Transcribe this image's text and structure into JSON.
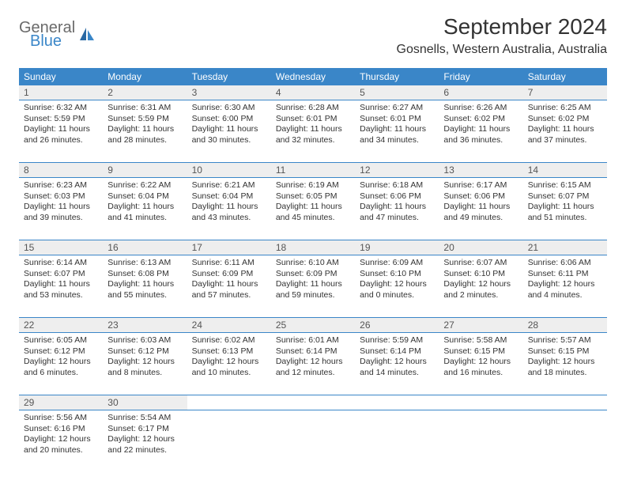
{
  "logo": {
    "general": "General",
    "blue": "Blue"
  },
  "title": "September 2024",
  "location": "Gosnells, Western Australia, Australia",
  "colors": {
    "header_bg": "#3a86c8",
    "header_text": "#ffffff",
    "daynum_bg": "#eeeeee",
    "text": "#333333",
    "border": "#3a86c8"
  },
  "day_names": [
    "Sunday",
    "Monday",
    "Tuesday",
    "Wednesday",
    "Thursday",
    "Friday",
    "Saturday"
  ],
  "weeks": [
    [
      {
        "num": "1",
        "sunrise": "Sunrise: 6:32 AM",
        "sunset": "Sunset: 5:59 PM",
        "daylight1": "Daylight: 11 hours",
        "daylight2": "and 26 minutes."
      },
      {
        "num": "2",
        "sunrise": "Sunrise: 6:31 AM",
        "sunset": "Sunset: 5:59 PM",
        "daylight1": "Daylight: 11 hours",
        "daylight2": "and 28 minutes."
      },
      {
        "num": "3",
        "sunrise": "Sunrise: 6:30 AM",
        "sunset": "Sunset: 6:00 PM",
        "daylight1": "Daylight: 11 hours",
        "daylight2": "and 30 minutes."
      },
      {
        "num": "4",
        "sunrise": "Sunrise: 6:28 AM",
        "sunset": "Sunset: 6:01 PM",
        "daylight1": "Daylight: 11 hours",
        "daylight2": "and 32 minutes."
      },
      {
        "num": "5",
        "sunrise": "Sunrise: 6:27 AM",
        "sunset": "Sunset: 6:01 PM",
        "daylight1": "Daylight: 11 hours",
        "daylight2": "and 34 minutes."
      },
      {
        "num": "6",
        "sunrise": "Sunrise: 6:26 AM",
        "sunset": "Sunset: 6:02 PM",
        "daylight1": "Daylight: 11 hours",
        "daylight2": "and 36 minutes."
      },
      {
        "num": "7",
        "sunrise": "Sunrise: 6:25 AM",
        "sunset": "Sunset: 6:02 PM",
        "daylight1": "Daylight: 11 hours",
        "daylight2": "and 37 minutes."
      }
    ],
    [
      {
        "num": "8",
        "sunrise": "Sunrise: 6:23 AM",
        "sunset": "Sunset: 6:03 PM",
        "daylight1": "Daylight: 11 hours",
        "daylight2": "and 39 minutes."
      },
      {
        "num": "9",
        "sunrise": "Sunrise: 6:22 AM",
        "sunset": "Sunset: 6:04 PM",
        "daylight1": "Daylight: 11 hours",
        "daylight2": "and 41 minutes."
      },
      {
        "num": "10",
        "sunrise": "Sunrise: 6:21 AM",
        "sunset": "Sunset: 6:04 PM",
        "daylight1": "Daylight: 11 hours",
        "daylight2": "and 43 minutes."
      },
      {
        "num": "11",
        "sunrise": "Sunrise: 6:19 AM",
        "sunset": "Sunset: 6:05 PM",
        "daylight1": "Daylight: 11 hours",
        "daylight2": "and 45 minutes."
      },
      {
        "num": "12",
        "sunrise": "Sunrise: 6:18 AM",
        "sunset": "Sunset: 6:06 PM",
        "daylight1": "Daylight: 11 hours",
        "daylight2": "and 47 minutes."
      },
      {
        "num": "13",
        "sunrise": "Sunrise: 6:17 AM",
        "sunset": "Sunset: 6:06 PM",
        "daylight1": "Daylight: 11 hours",
        "daylight2": "and 49 minutes."
      },
      {
        "num": "14",
        "sunrise": "Sunrise: 6:15 AM",
        "sunset": "Sunset: 6:07 PM",
        "daylight1": "Daylight: 11 hours",
        "daylight2": "and 51 minutes."
      }
    ],
    [
      {
        "num": "15",
        "sunrise": "Sunrise: 6:14 AM",
        "sunset": "Sunset: 6:07 PM",
        "daylight1": "Daylight: 11 hours",
        "daylight2": "and 53 minutes."
      },
      {
        "num": "16",
        "sunrise": "Sunrise: 6:13 AM",
        "sunset": "Sunset: 6:08 PM",
        "daylight1": "Daylight: 11 hours",
        "daylight2": "and 55 minutes."
      },
      {
        "num": "17",
        "sunrise": "Sunrise: 6:11 AM",
        "sunset": "Sunset: 6:09 PM",
        "daylight1": "Daylight: 11 hours",
        "daylight2": "and 57 minutes."
      },
      {
        "num": "18",
        "sunrise": "Sunrise: 6:10 AM",
        "sunset": "Sunset: 6:09 PM",
        "daylight1": "Daylight: 11 hours",
        "daylight2": "and 59 minutes."
      },
      {
        "num": "19",
        "sunrise": "Sunrise: 6:09 AM",
        "sunset": "Sunset: 6:10 PM",
        "daylight1": "Daylight: 12 hours",
        "daylight2": "and 0 minutes."
      },
      {
        "num": "20",
        "sunrise": "Sunrise: 6:07 AM",
        "sunset": "Sunset: 6:10 PM",
        "daylight1": "Daylight: 12 hours",
        "daylight2": "and 2 minutes."
      },
      {
        "num": "21",
        "sunrise": "Sunrise: 6:06 AM",
        "sunset": "Sunset: 6:11 PM",
        "daylight1": "Daylight: 12 hours",
        "daylight2": "and 4 minutes."
      }
    ],
    [
      {
        "num": "22",
        "sunrise": "Sunrise: 6:05 AM",
        "sunset": "Sunset: 6:12 PM",
        "daylight1": "Daylight: 12 hours",
        "daylight2": "and 6 minutes."
      },
      {
        "num": "23",
        "sunrise": "Sunrise: 6:03 AM",
        "sunset": "Sunset: 6:12 PM",
        "daylight1": "Daylight: 12 hours",
        "daylight2": "and 8 minutes."
      },
      {
        "num": "24",
        "sunrise": "Sunrise: 6:02 AM",
        "sunset": "Sunset: 6:13 PM",
        "daylight1": "Daylight: 12 hours",
        "daylight2": "and 10 minutes."
      },
      {
        "num": "25",
        "sunrise": "Sunrise: 6:01 AM",
        "sunset": "Sunset: 6:14 PM",
        "daylight1": "Daylight: 12 hours",
        "daylight2": "and 12 minutes."
      },
      {
        "num": "26",
        "sunrise": "Sunrise: 5:59 AM",
        "sunset": "Sunset: 6:14 PM",
        "daylight1": "Daylight: 12 hours",
        "daylight2": "and 14 minutes."
      },
      {
        "num": "27",
        "sunrise": "Sunrise: 5:58 AM",
        "sunset": "Sunset: 6:15 PM",
        "daylight1": "Daylight: 12 hours",
        "daylight2": "and 16 minutes."
      },
      {
        "num": "28",
        "sunrise": "Sunrise: 5:57 AM",
        "sunset": "Sunset: 6:15 PM",
        "daylight1": "Daylight: 12 hours",
        "daylight2": "and 18 minutes."
      }
    ],
    [
      {
        "num": "29",
        "sunrise": "Sunrise: 5:56 AM",
        "sunset": "Sunset: 6:16 PM",
        "daylight1": "Daylight: 12 hours",
        "daylight2": "and 20 minutes."
      },
      {
        "num": "30",
        "sunrise": "Sunrise: 5:54 AM",
        "sunset": "Sunset: 6:17 PM",
        "daylight1": "Daylight: 12 hours",
        "daylight2": "and 22 minutes."
      },
      null,
      null,
      null,
      null,
      null
    ]
  ]
}
